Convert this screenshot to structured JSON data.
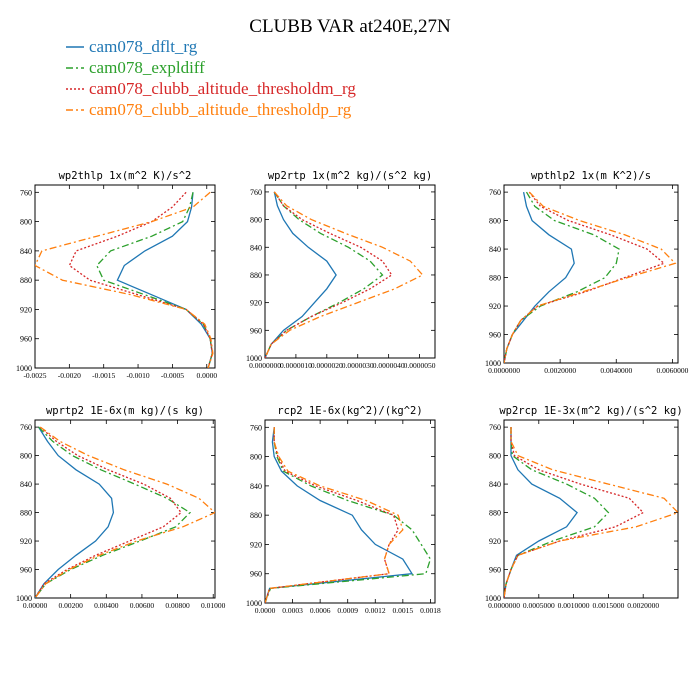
{
  "figure": {
    "title": "CLUBB VAR at240E,27N"
  },
  "legend": {
    "placement": "top-left",
    "items": [
      {
        "label": "cam078_dflt_rg",
        "color": "#1f77b4",
        "dash": "solid"
      },
      {
        "label": "cam078_expldiff",
        "color": "#2ca02c",
        "dash": "dashdot"
      },
      {
        "label": "cam078_clubb_altitude_thresholdm_rg",
        "color": "#d62728",
        "dash": "dotted"
      },
      {
        "label": "cam078_clubb_altitude_thresholdp_rg",
        "color": "#ff7f0e",
        "dash": "dashdot"
      }
    ]
  },
  "chart_data": [
    {
      "type": "line",
      "title": "wp2thlp  1x(m^2 K)/s^2",
      "xlabel": "",
      "ylabel": "",
      "xlim": [
        -0.0025,
        0.00012
      ],
      "ylim": [
        1000,
        750
      ],
      "xticks": [
        -0.0025,
        -0.002,
        -0.0015,
        -0.001,
        -0.0005,
        0.0
      ],
      "xticklabels": [
        "-0.0025",
        "-0.0020",
        "-0.0015",
        "-0.0010",
        "-0.0005",
        "0.0000"
      ],
      "yticks": [
        760,
        800,
        840,
        880,
        920,
        960,
        1000
      ],
      "yticklabels": [
        "760",
        "800",
        "840",
        "880",
        "920",
        "960",
        "1000"
      ],
      "y": [
        760,
        780,
        800,
        820,
        840,
        860,
        880,
        900,
        920,
        940,
        960,
        980,
        1000
      ],
      "series": [
        {
          "name": "cam078_dflt_rg",
          "values": [
            -0.0002,
            -0.00022,
            -0.00028,
            -0.0005,
            -0.0009,
            -0.0012,
            -0.0013,
            -0.0008,
            -0.0003,
            -8e-05,
            5e-05,
            8e-05,
            2e-05
          ]
        },
        {
          "name": "cam078_expldiff",
          "values": [
            -0.0002,
            -0.00025,
            -0.00035,
            -0.0008,
            -0.0014,
            -0.0016,
            -0.0015,
            -0.0009,
            -0.0003,
            -5e-05,
            5e-05,
            8e-05,
            2e-05
          ]
        },
        {
          "name": "cam078_clubb_altitude_thresholdm_rg",
          "values": [
            -0.0003,
            -0.0005,
            -0.0008,
            -0.0013,
            -0.0019,
            -0.002,
            -0.0017,
            -0.001,
            -0.0003,
            -5e-05,
            5e-05,
            8e-05,
            2e-05
          ]
        },
        {
          "name": "cam078_clubb_altitude_thresholdp_rg",
          "values": [
            5e-05,
            -0.0002,
            -0.0008,
            -0.0016,
            -0.0024,
            -0.0025,
            -0.0021,
            -0.0011,
            -0.0003,
            -3e-05,
            6e-05,
            9e-05,
            2e-05
          ]
        }
      ]
    },
    {
      "type": "line",
      "title": "wp2rtp  1x(m^2 kg)/(s^2 kg)",
      "xlabel": "",
      "ylabel": "",
      "xlim": [
        0.0,
        5.5e-06
      ],
      "ylim": [
        1000,
        750
      ],
      "xticks": [
        0.0,
        1e-06,
        2e-06,
        3e-06,
        4e-06,
        5e-06
      ],
      "xticklabels": [
        "0.0000000",
        "0.0000010",
        "0.0000020",
        "0.0000030",
        "0.0000040",
        "0.0000050"
      ],
      "yticks": [
        760,
        800,
        840,
        880,
        920,
        960,
        1000
      ],
      "yticklabels": [
        "760",
        "800",
        "840",
        "880",
        "920",
        "960",
        "1000"
      ],
      "y": [
        760,
        780,
        800,
        820,
        840,
        860,
        880,
        900,
        920,
        940,
        960,
        980,
        1000
      ],
      "series": [
        {
          "name": "cam078_dflt_rg",
          "values": [
            3e-07,
            4e-07,
            6e-07,
            9e-07,
            1.4e-06,
            2e-06,
            2.3e-06,
            2e-06,
            1.6e-06,
            1.2e-06,
            6e-07,
            2e-07,
            0.0
          ],
          "__values_note": ""
        },
        {
          "name": "cam078_expldiff",
          "values": [
            3e-07,
            6e-07,
            1.1e-06,
            1.8e-06,
            2.7e-06,
            3.4e-06,
            3.8e-06,
            3.2e-06,
            2.4e-06,
            1.5e-06,
            7e-07,
            2e-07,
            0.0
          ]
        },
        {
          "name": "cam078_clubb_altitude_thresholdm_rg",
          "values": [
            3e-07,
            6e-07,
            1.2e-06,
            2.1e-06,
            3.1e-06,
            3.8e-06,
            4.1e-06,
            3.4e-06,
            2.5e-06,
            1.5e-06,
            7e-07,
            2e-07,
            0.0
          ]
        },
        {
          "name": "cam078_clubb_altitude_thresholdp_rg",
          "values": [
            3e-07,
            7e-07,
            1.5e-06,
            2.6e-06,
            3.8e-06,
            4.7e-06,
            5.1e-06,
            4.2e-06,
            3e-06,
            1.8e-06,
            8e-07,
            2e-07,
            0.0
          ]
        }
      ]
    },
    {
      "type": "line",
      "title": "wpthlp2  1x(m K^2)/s",
      "xlabel": "",
      "ylabel": "",
      "xlim": [
        0.0,
        0.0062
      ],
      "ylim": [
        1000,
        750
      ],
      "xticks": [
        0.0,
        0.002,
        0.004,
        0.006
      ],
      "xticklabels": [
        "0.0000000",
        "0.0020000",
        "0.0040000",
        "0.0060000"
      ],
      "yticks": [
        760,
        800,
        840,
        880,
        920,
        960,
        1000
      ],
      "yticklabels": [
        "760",
        "800",
        "840",
        "880",
        "920",
        "960",
        "1000"
      ],
      "y": [
        760,
        780,
        800,
        820,
        840,
        860,
        880,
        900,
        920,
        940,
        960,
        980,
        1000
      ],
      "series": [
        {
          "name": "cam078_dflt_rg",
          "values": [
            0.0007,
            0.0008,
            0.001,
            0.0016,
            0.0024,
            0.0025,
            0.0022,
            0.0016,
            0.0011,
            0.0007,
            0.0003,
            0.0001,
            0.0
          ]
        },
        {
          "name": "cam078_expldiff",
          "values": [
            0.0008,
            0.0011,
            0.0018,
            0.0032,
            0.0041,
            0.004,
            0.0036,
            0.0026,
            0.0013,
            0.0006,
            0.0003,
            0.0001,
            0.0
          ]
        },
        {
          "name": "cam078_clubb_altitude_thresholdm_rg",
          "values": [
            0.0009,
            0.0013,
            0.0023,
            0.0038,
            0.0051,
            0.0057,
            0.0043,
            0.0029,
            0.0012,
            0.0006,
            0.0003,
            0.0001,
            0.0
          ]
        },
        {
          "name": "cam078_clubb_altitude_thresholdp_rg",
          "values": [
            0.0009,
            0.0014,
            0.0027,
            0.0043,
            0.0056,
            0.0061,
            0.0044,
            0.0028,
            0.0012,
            0.0006,
            0.0003,
            0.0001,
            0.0
          ]
        }
      ]
    },
    {
      "type": "line",
      "title": "wprtp2  1E-6x(m kg)/(s kg)",
      "xlabel": "",
      "ylabel": "",
      "xlim": [
        0.0,
        0.0101
      ],
      "ylim": [
        1000,
        750
      ],
      "xticks": [
        0.0,
        0.002,
        0.004,
        0.006,
        0.008,
        0.01
      ],
      "xticklabels": [
        "0.00000",
        "0.00200",
        "0.00400",
        "0.00600",
        "0.00800",
        "0.01000"
      ],
      "yticks": [
        760,
        800,
        840,
        880,
        920,
        960,
        1000
      ],
      "yticklabels": [
        "760",
        "800",
        "840",
        "880",
        "920",
        "960",
        "1000"
      ],
      "y": [
        760,
        780,
        800,
        820,
        840,
        860,
        880,
        900,
        920,
        940,
        960,
        980,
        1000
      ],
      "series": [
        {
          "name": "cam078_dflt_rg",
          "values": [
            0.0002,
            0.0007,
            0.0013,
            0.0023,
            0.0036,
            0.0043,
            0.0044,
            0.0041,
            0.0034,
            0.0023,
            0.0013,
            0.0005,
            0.0
          ]
        },
        {
          "name": "cam078_expldiff",
          "values": [
            0.0002,
            0.001,
            0.0021,
            0.0037,
            0.0056,
            0.0074,
            0.0087,
            0.0079,
            0.0059,
            0.0038,
            0.002,
            0.0006,
            0.0
          ]
        },
        {
          "name": "cam078_clubb_altitude_thresholdm_rg",
          "values": [
            0.0003,
            0.0012,
            0.0024,
            0.0041,
            0.0061,
            0.0076,
            0.0082,
            0.0072,
            0.0053,
            0.0034,
            0.0018,
            0.0005,
            0.0
          ]
        },
        {
          "name": "cam078_clubb_altitude_thresholdp_rg",
          "values": [
            0.0003,
            0.0014,
            0.003,
            0.005,
            0.0074,
            0.0092,
            0.0101,
            0.0083,
            0.0057,
            0.0036,
            0.0019,
            0.0006,
            0.0
          ]
        }
      ]
    },
    {
      "type": "line",
      "title": "rcp2  1E-6x(kg^2)/(kg^2)",
      "xlabel": "",
      "ylabel": "",
      "xlim": [
        0.0,
        0.00185
      ],
      "ylim": [
        1000,
        750
      ],
      "xticks": [
        0.0,
        0.0003,
        0.0006,
        0.0009,
        0.0012,
        0.0015,
        0.0018
      ],
      "xticklabels": [
        "0.0000",
        "0.0003",
        "0.0006",
        "0.0009",
        "0.0012",
        "0.0015",
        "0.0018"
      ],
      "yticks": [
        760,
        800,
        840,
        880,
        920,
        960,
        1000
      ],
      "yticklabels": [
        "760",
        "800",
        "840",
        "880",
        "920",
        "960",
        "1000"
      ],
      "y": [
        760,
        780,
        800,
        820,
        840,
        860,
        880,
        900,
        920,
        940,
        960,
        980,
        1000
      ],
      "series": [
        {
          "name": "cam078_dflt_rg",
          "values": [
            0.0001,
            8e-05,
            0.0001,
            0.00018,
            0.00035,
            0.0006,
            0.00095,
            0.00105,
            0.0012,
            0.0015,
            0.0016,
            5e-05,
            0.0
          ]
        },
        {
          "name": "cam078_expldiff",
          "values": [
            0.0001,
            0.0001,
            0.00013,
            0.0002,
            0.0005,
            0.0009,
            0.0014,
            0.0016,
            0.0017,
            0.0018,
            0.00175,
            6e-05,
            0.0
          ]
        },
        {
          "name": "cam078_clubb_altitude_thresholdm_rg",
          "values": [
            0.0001,
            0.0001,
            0.00014,
            0.00022,
            0.00055,
            0.001,
            0.0014,
            0.00145,
            0.00135,
            0.0013,
            0.00135,
            5e-05,
            0.0
          ]
        },
        {
          "name": "cam078_clubb_altitude_thresholdp_rg",
          "values": [
            0.0001,
            0.0001,
            0.00015,
            0.00025,
            0.0006,
            0.0011,
            0.00145,
            0.0015,
            0.00135,
            0.0013,
            0.00135,
            5e-05,
            0.0
          ]
        }
      ]
    },
    {
      "type": "line",
      "title": "wp2rcp  1E-3x(m^2 kg)/(s^2 kg)",
      "xlabel": "",
      "ylabel": "",
      "xlim": [
        0.0,
        0.0025
      ],
      "ylim": [
        1000,
        750
      ],
      "xticks": [
        0.0,
        0.0005,
        0.001,
        0.0015,
        0.002
      ],
      "xticklabels": [
        "0.0000000",
        "0.0005000",
        "0.0010000",
        "0.0015000",
        "0.0020000"
      ],
      "yticks": [
        760,
        800,
        840,
        880,
        920,
        960,
        1000
      ],
      "yticklabels": [
        "760",
        "800",
        "840",
        "880",
        "920",
        "960",
        "1000"
      ],
      "y": [
        760,
        780,
        800,
        820,
        840,
        860,
        880,
        900,
        920,
        940,
        960,
        980,
        1000
      ],
      "series": [
        {
          "name": "cam078_dflt_rg",
          "values": [
            0.0001,
            0.0001,
            0.0001,
            0.0002,
            0.0004,
            0.0008,
            0.00105,
            0.0009,
            0.0005,
            0.00018,
            0.0001,
            3e-05,
            0.0
          ]
        },
        {
          "name": "cam078_expldiff",
          "values": [
            0.0001,
            0.0001,
            0.00012,
            0.0004,
            0.0009,
            0.0013,
            0.0015,
            0.0013,
            0.0007,
            0.0002,
            0.0001,
            3e-05,
            0.0
          ]
        },
        {
          "name": "cam078_clubb_altitude_thresholdm_rg",
          "values": [
            0.0001,
            0.0001,
            0.00015,
            0.0005,
            0.0011,
            0.0018,
            0.002,
            0.0016,
            0.0008,
            0.0002,
            0.0001,
            3e-05,
            0.0
          ]
        },
        {
          "name": "cam078_clubb_altitude_thresholdp_rg",
          "values": [
            0.0001,
            0.0001,
            0.0002,
            0.0007,
            0.0015,
            0.0023,
            0.0025,
            0.0019,
            0.0008,
            0.0002,
            0.0001,
            3e-05,
            0.0
          ]
        }
      ]
    }
  ]
}
